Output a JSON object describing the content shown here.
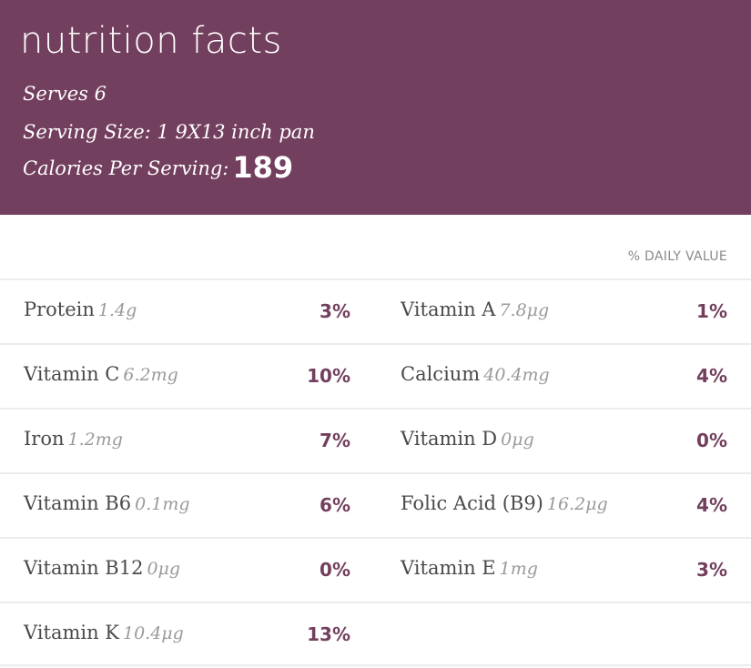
{
  "header": {
    "title": "nutrition facts",
    "serves": "Serves 6",
    "serving_size": "Serving Size: 1 9X13 inch pan",
    "calories_label": "Calories Per Serving:",
    "calories_value": "189"
  },
  "daily_value_header": "% DAILY VALUE",
  "colors": {
    "accent": "#733f5e",
    "text": "#4a4a4a",
    "muted": "#9a9a9a",
    "divider": "#ececec"
  },
  "rows": [
    {
      "left": {
        "name": "Protein",
        "amount": "1.4g",
        "pct": "3%"
      },
      "right": {
        "name": "Vitamin A",
        "amount": "7.8μg",
        "pct": "1%"
      }
    },
    {
      "left": {
        "name": "Vitamin C",
        "amount": "6.2mg",
        "pct": "10%"
      },
      "right": {
        "name": "Calcium",
        "amount": "40.4mg",
        "pct": "4%"
      }
    },
    {
      "left": {
        "name": "Iron",
        "amount": "1.2mg",
        "pct": "7%"
      },
      "right": {
        "name": "Vitamin D",
        "amount": "0μg",
        "pct": "0%"
      }
    },
    {
      "left": {
        "name": "Vitamin B6",
        "amount": "0.1mg",
        "pct": "6%"
      },
      "right": {
        "name": "Folic Acid (B9)",
        "amount": "16.2μg",
        "pct": "4%"
      }
    },
    {
      "left": {
        "name": "Vitamin B12",
        "amount": "0μg",
        "pct": "0%"
      },
      "right": {
        "name": "Vitamin E",
        "amount": "1mg",
        "pct": "3%"
      }
    },
    {
      "left": {
        "name": "Vitamin K",
        "amount": "10.4μg",
        "pct": "13%"
      }
    }
  ]
}
